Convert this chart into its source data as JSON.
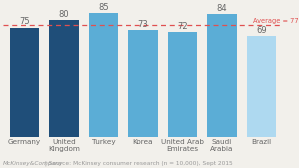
{
  "categories": [
    "Germany",
    "United\nKingdom",
    "Turkey",
    "Korea",
    "United Arab\nEmirates",
    "Saudi\nArabia",
    "Brazil"
  ],
  "values": [
    75,
    80,
    85,
    73,
    72,
    84,
    69
  ],
  "bar_colors": [
    "#1f4e79",
    "#1f4e79",
    "#5badd6",
    "#5badd6",
    "#5badd6",
    "#5badd6",
    "#aed9f0"
  ],
  "average": 77,
  "average_label": "Average = 77",
  "average_line_color": "#e05050",
  "ylim_min": 0,
  "ylim_max": 90,
  "footer_left": "McKinsey&Company",
  "footer_sep": " | ",
  "footer_right": "Source: McKinsey consumer research (n = 10,000), Sept 2015",
  "bar_width": 0.75,
  "value_fontsize": 6,
  "label_fontsize": 5.2,
  "footer_fontsize": 4.2,
  "bg_color": "#f2f0eb"
}
